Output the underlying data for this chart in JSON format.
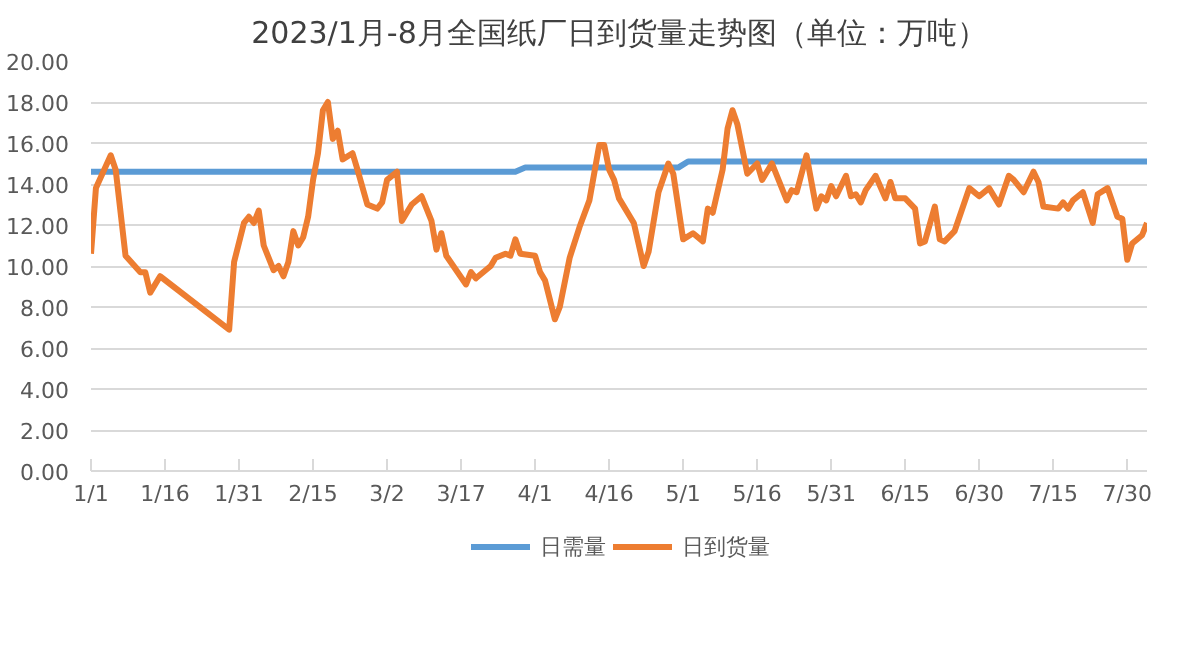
{
  "chart_data": {
    "type": "line",
    "title": "2023/1月-8月全国纸厂日到货量走势图（单位：万吨）",
    "xlim": [
      "2023-01-01",
      "2023-08-03"
    ],
    "xticks": [
      {
        "value": "2023-01-01",
        "label": "1/1"
      },
      {
        "value": "2023-01-16",
        "label": "1/16"
      },
      {
        "value": "2023-01-31",
        "label": "1/31"
      },
      {
        "value": "2023-02-15",
        "label": "2/15"
      },
      {
        "value": "2023-03-02",
        "label": "3/2"
      },
      {
        "value": "2023-03-17",
        "label": "3/17"
      },
      {
        "value": "2023-04-01",
        "label": "4/1"
      },
      {
        "value": "2023-04-16",
        "label": "4/16"
      },
      {
        "value": "2023-05-01",
        "label": "5/1"
      },
      {
        "value": "2023-05-16",
        "label": "5/16"
      },
      {
        "value": "2023-05-31",
        "label": "5/31"
      },
      {
        "value": "2023-06-15",
        "label": "6/15"
      },
      {
        "value": "2023-06-30",
        "label": "6/30"
      },
      {
        "value": "2023-07-15",
        "label": "7/15"
      },
      {
        "value": "2023-07-30",
        "label": "7/30"
      }
    ],
    "ylim": [
      0,
      20
    ],
    "yticks": [
      {
        "value": 0,
        "label": "0.00"
      },
      {
        "value": 2,
        "label": "2.00"
      },
      {
        "value": 4,
        "label": "4.00"
      },
      {
        "value": 6,
        "label": "6.00"
      },
      {
        "value": 8,
        "label": "8.00"
      },
      {
        "value": 10,
        "label": "10.00"
      },
      {
        "value": 12,
        "label": "12.00"
      },
      {
        "value": 14,
        "label": "14.00"
      },
      {
        "value": 16,
        "label": "16.00"
      },
      {
        "value": 18,
        "label": "18.00"
      },
      {
        "value": 20,
        "label": "20.00"
      }
    ],
    "grid": "y",
    "legend": "bottom",
    "marker": "none",
    "line_style": "solid",
    "series": [
      {
        "name": "日需量",
        "color": "#5b9bd5",
        "x": [
          "2023-01-01",
          "2023-03-28",
          "2023-03-30",
          "2023-04-30",
          "2023-05-02",
          "2023-08-03"
        ],
        "values": [
          14.6,
          14.6,
          14.8,
          14.8,
          15.1,
          15.1
        ]
      },
      {
        "name": "日到货量",
        "color": "#ed7d31",
        "x": [
          "2023-01-01",
          "2023-01-02",
          "2023-01-05",
          "2023-01-06",
          "2023-01-08",
          "2023-01-11",
          "2023-01-12",
          "2023-01-13",
          "2023-01-15",
          "2023-01-29",
          "2023-01-30",
          "2023-02-01",
          "2023-02-02",
          "2023-02-03",
          "2023-02-04",
          "2023-02-05",
          "2023-02-07",
          "2023-02-08",
          "2023-02-09",
          "2023-02-10",
          "2023-02-11",
          "2023-02-12",
          "2023-02-13",
          "2023-02-14",
          "2023-02-15",
          "2023-02-16",
          "2023-02-17",
          "2023-02-18",
          "2023-02-19",
          "2023-02-20",
          "2023-02-21",
          "2023-02-23",
          "2023-02-24",
          "2023-02-26",
          "2023-02-28",
          "2023-03-01",
          "2023-03-02",
          "2023-03-04",
          "2023-03-05",
          "2023-03-07",
          "2023-03-09",
          "2023-03-11",
          "2023-03-12",
          "2023-03-13",
          "2023-03-14",
          "2023-03-18",
          "2023-03-19",
          "2023-03-20",
          "2023-03-23",
          "2023-03-24",
          "2023-03-26",
          "2023-03-27",
          "2023-03-28",
          "2023-03-29",
          "2023-04-01",
          "2023-04-02",
          "2023-04-03",
          "2023-04-05",
          "2023-04-06",
          "2023-04-08",
          "2023-04-10",
          "2023-04-12",
          "2023-04-14",
          "2023-04-15",
          "2023-04-16",
          "2023-04-17",
          "2023-04-18",
          "2023-04-21",
          "2023-04-23",
          "2023-04-24",
          "2023-04-26",
          "2023-04-28",
          "2023-04-29",
          "2023-05-01",
          "2023-05-03",
          "2023-05-05",
          "2023-05-06",
          "2023-05-07",
          "2023-05-09",
          "2023-05-10",
          "2023-05-11",
          "2023-05-12",
          "2023-05-14",
          "2023-05-16",
          "2023-05-17",
          "2023-05-19",
          "2023-05-22",
          "2023-05-23",
          "2023-05-24",
          "2023-05-26",
          "2023-05-28",
          "2023-05-29",
          "2023-05-30",
          "2023-05-31",
          "2023-06-01",
          "2023-06-03",
          "2023-06-04",
          "2023-06-05",
          "2023-06-06",
          "2023-06-07",
          "2023-06-09",
          "2023-06-11",
          "2023-06-12",
          "2023-06-13",
          "2023-06-15",
          "2023-06-17",
          "2023-06-18",
          "2023-06-19",
          "2023-06-21",
          "2023-06-22",
          "2023-06-23",
          "2023-06-25",
          "2023-06-28",
          "2023-06-30",
          "2023-07-02",
          "2023-07-04",
          "2023-07-06",
          "2023-07-07",
          "2023-07-09",
          "2023-07-11",
          "2023-07-12",
          "2023-07-13",
          "2023-07-16",
          "2023-07-17",
          "2023-07-18",
          "2023-07-19",
          "2023-07-21",
          "2023-07-23",
          "2023-07-24",
          "2023-07-26",
          "2023-07-28",
          "2023-07-29",
          "2023-07-30",
          "2023-07-31",
          "2023-08-02",
          "2023-08-03"
        ],
        "values": [
          10.6,
          13.8,
          15.4,
          14.7,
          10.5,
          9.7,
          9.7,
          8.7,
          9.5,
          6.9,
          10.2,
          12.1,
          12.4,
          12.1,
          12.7,
          11.0,
          9.8,
          10.0,
          9.5,
          10.2,
          11.7,
          11.0,
          11.4,
          12.4,
          14.2,
          15.5,
          17.6,
          18.0,
          16.2,
          16.6,
          15.2,
          15.5,
          14.7,
          13.0,
          12.8,
          13.1,
          14.2,
          14.6,
          12.2,
          13.0,
          13.4,
          12.2,
          10.8,
          11.6,
          10.5,
          9.1,
          9.7,
          9.4,
          10.0,
          10.4,
          10.6,
          10.5,
          11.3,
          10.6,
          10.5,
          9.7,
          9.3,
          7.4,
          8.0,
          10.4,
          11.9,
          13.2,
          15.9,
          15.9,
          14.7,
          14.2,
          13.3,
          12.1,
          10.0,
          10.7,
          13.6,
          15.0,
          14.5,
          11.3,
          11.6,
          11.2,
          12.8,
          12.6,
          14.7,
          16.7,
          17.6,
          16.9,
          14.5,
          15.0,
          14.2,
          15.0,
          13.2,
          13.7,
          13.6,
          15.4,
          12.8,
          13.4,
          13.2,
          13.9,
          13.4,
          14.4,
          13.4,
          13.5,
          13.1,
          13.7,
          14.4,
          13.3,
          14.1,
          13.3,
          13.3,
          12.8,
          11.1,
          11.2,
          12.9,
          11.3,
          11.2,
          11.7,
          13.8,
          13.4,
          13.8,
          13.0,
          14.4,
          14.2,
          13.6,
          14.6,
          14.1,
          12.9,
          12.8,
          13.1,
          12.8,
          13.2,
          13.6,
          12.1,
          13.5,
          13.8,
          12.4,
          12.3,
          10.3,
          11.1,
          11.5,
          12.1
        ]
      }
    ]
  }
}
